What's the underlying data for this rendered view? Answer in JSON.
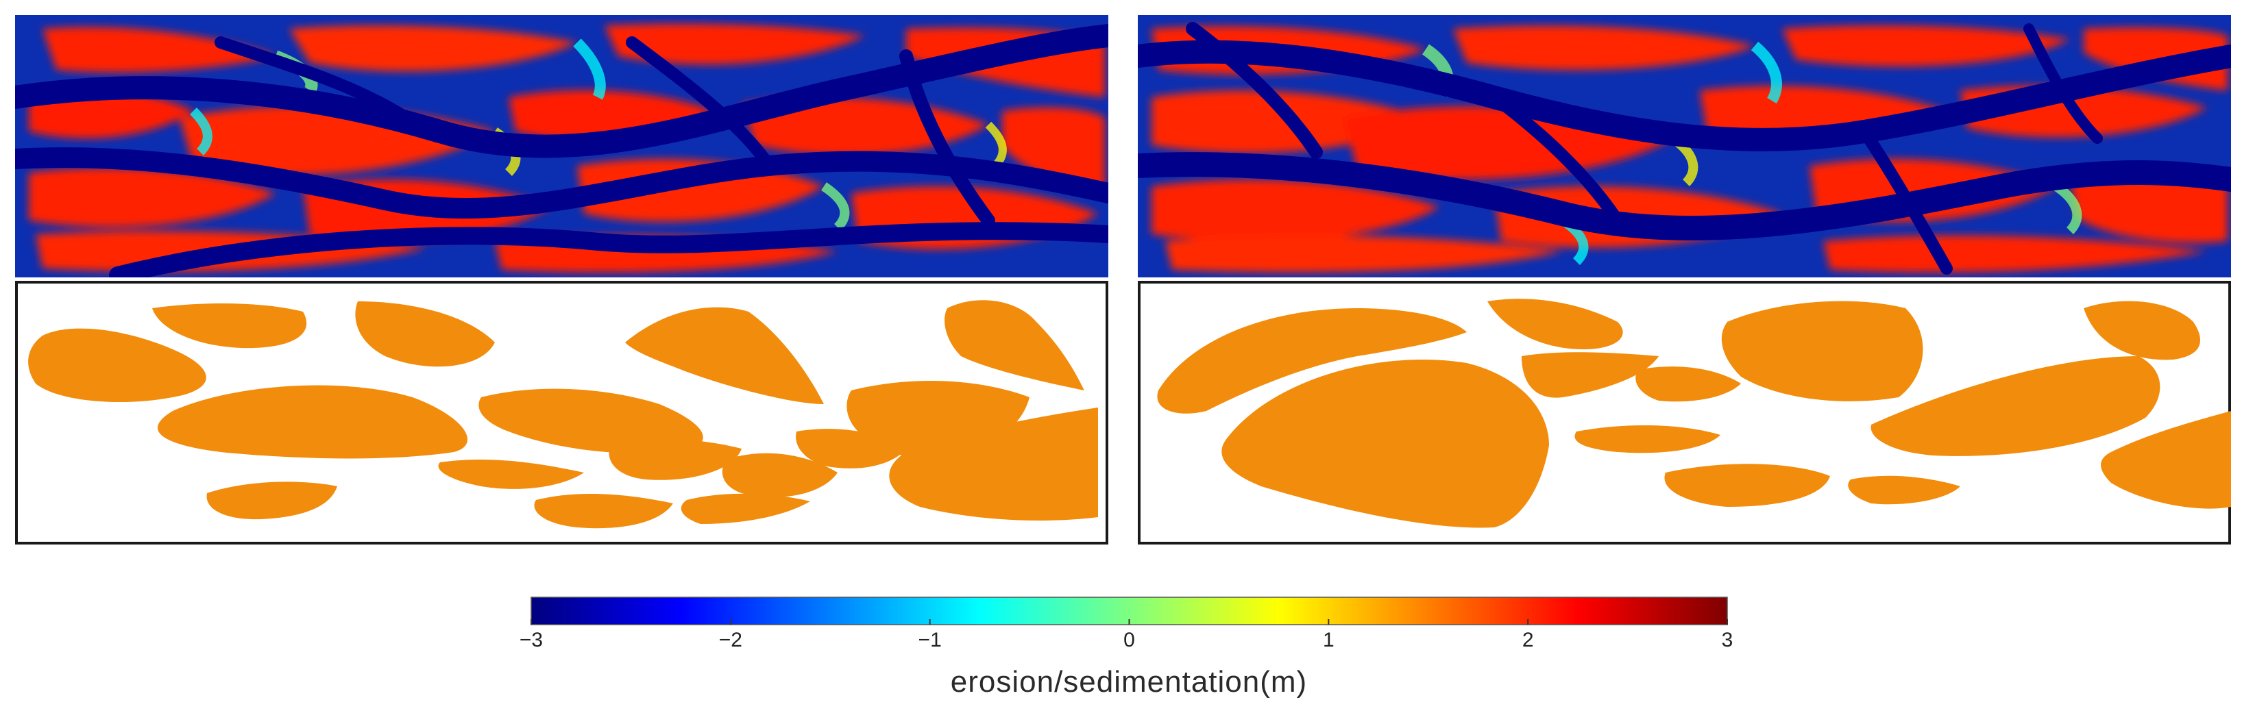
{
  "colorbar": {
    "label": "erosion/sedimentation(m)",
    "min": -3,
    "max": 3,
    "ticks": [
      {
        "value": -3,
        "label": "−3"
      },
      {
        "value": -2,
        "label": "−2"
      },
      {
        "value": -1,
        "label": "−1"
      },
      {
        "value": 0,
        "label": "0"
      },
      {
        "value": 1,
        "label": "1"
      },
      {
        "value": 2,
        "label": "2"
      },
      {
        "value": 3,
        "label": "3"
      }
    ],
    "colormap": "jet",
    "stops": [
      "#00007f",
      "#0000ff",
      "#007fff",
      "#00ffff",
      "#7fff7f",
      "#ffff00",
      "#ff7f00",
      "#ff0000",
      "#7f0000"
    ]
  },
  "colors": {
    "bar_fill": "#f28c0d",
    "channel": "#00008b",
    "bar_high": "#ff1a00",
    "outline": "#1a1a1a"
  },
  "panels": [
    {
      "id": "left",
      "top_content": "erosion-sedimentation-map",
      "bottom_content": "bar-outline-map"
    },
    {
      "id": "right",
      "top_content": "erosion-sedimentation-map",
      "bottom_content": "bar-outline-map"
    }
  ]
}
